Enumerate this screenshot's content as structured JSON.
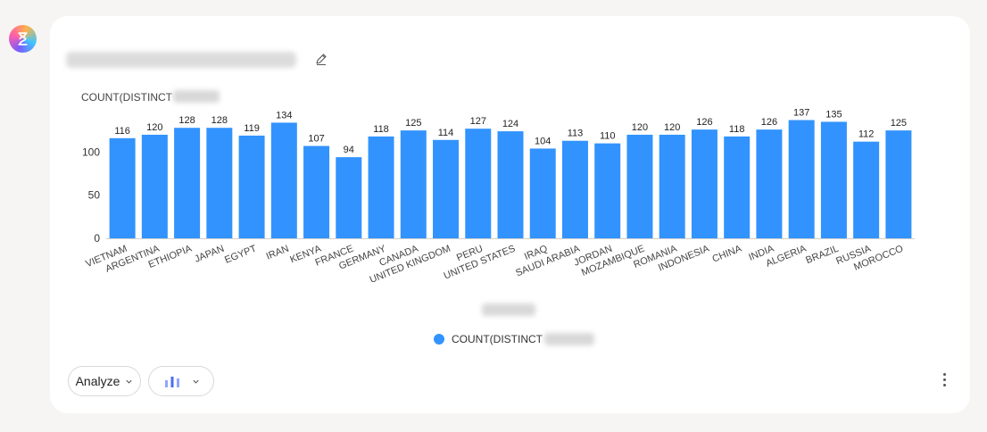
{
  "chart_data": {
    "type": "bar",
    "categories": [
      "VIETNAM",
      "ARGENTINA",
      "ETHIOPIA",
      "JAPAN",
      "EGYPT",
      "IRAN",
      "KENYA",
      "FRANCE",
      "GERMANY",
      "CANADA",
      "UNITED KINGDOM",
      "PERU",
      "UNITED STATES",
      "IRAQ",
      "SAUDI ARABIA",
      "JORDAN",
      "MOZAMBIQUE",
      "ROMANIA",
      "INDONESIA",
      "CHINA",
      "INDIA",
      "ALGERIA",
      "BRAZIL",
      "RUSSIA",
      "MOROCCO"
    ],
    "series": [
      {
        "values": [
          116,
          120,
          128,
          128,
          119,
          134,
          107,
          94,
          118,
          125,
          114,
          127,
          124,
          104,
          113,
          110,
          120,
          120,
          126,
          118,
          126,
          137,
          135,
          112,
          125
        ]
      }
    ],
    "ylabel": "COUNT(DISTINCT",
    "yticks": [
      0,
      50,
      100
    ],
    "ylim": [
      0,
      137
    ],
    "legend": {
      "label": "COUNT(DISTINCT",
      "placement": "bottom-center"
    },
    "bar_color": "#3293fe",
    "grid": false
  },
  "toolbar": {
    "analyze_label": "Analyze",
    "chart_type_icon": "bar-chart-icon"
  },
  "icons": {
    "logo": "hourglass-icon",
    "edit": "pencil-icon",
    "more": "more-vertical-icon"
  }
}
